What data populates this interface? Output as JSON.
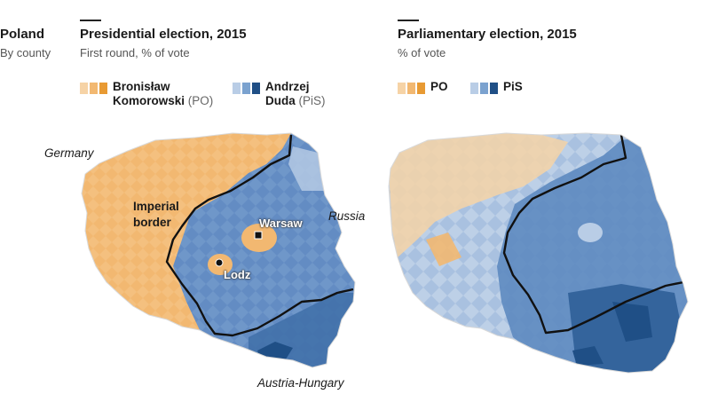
{
  "left_header": {
    "title": "Poland",
    "subtitle": "By county"
  },
  "panel_left": {
    "title": "Presidential election, 2015",
    "subtitle": "First round, % of vote",
    "legend": {
      "po": {
        "line1": "Bronisław",
        "line2": "Komorowski",
        "party": "(PO)"
      },
      "pis": {
        "line1": "Andrzej",
        "line2": "Duda",
        "party": "(PiS)"
      }
    },
    "labels": {
      "germany": "Germany",
      "russia": "Russia",
      "austria": "Austria-Hungary",
      "border_line1": "Imperial",
      "border_line2": "border",
      "warsaw": "Warsaw",
      "lodz": "Lodz"
    }
  },
  "panel_right": {
    "title": "Parliamentary election, 2015",
    "subtitle": "% of vote",
    "legend": {
      "po": "PO",
      "pis": "PiS"
    }
  },
  "colors": {
    "orange_scale": [
      "#f6d3a6",
      "#f2b871",
      "#e89a33"
    ],
    "blue_scale": [
      "#b9cde6",
      "#7ba2cf",
      "#1f4f86"
    ],
    "border": "#111111"
  }
}
